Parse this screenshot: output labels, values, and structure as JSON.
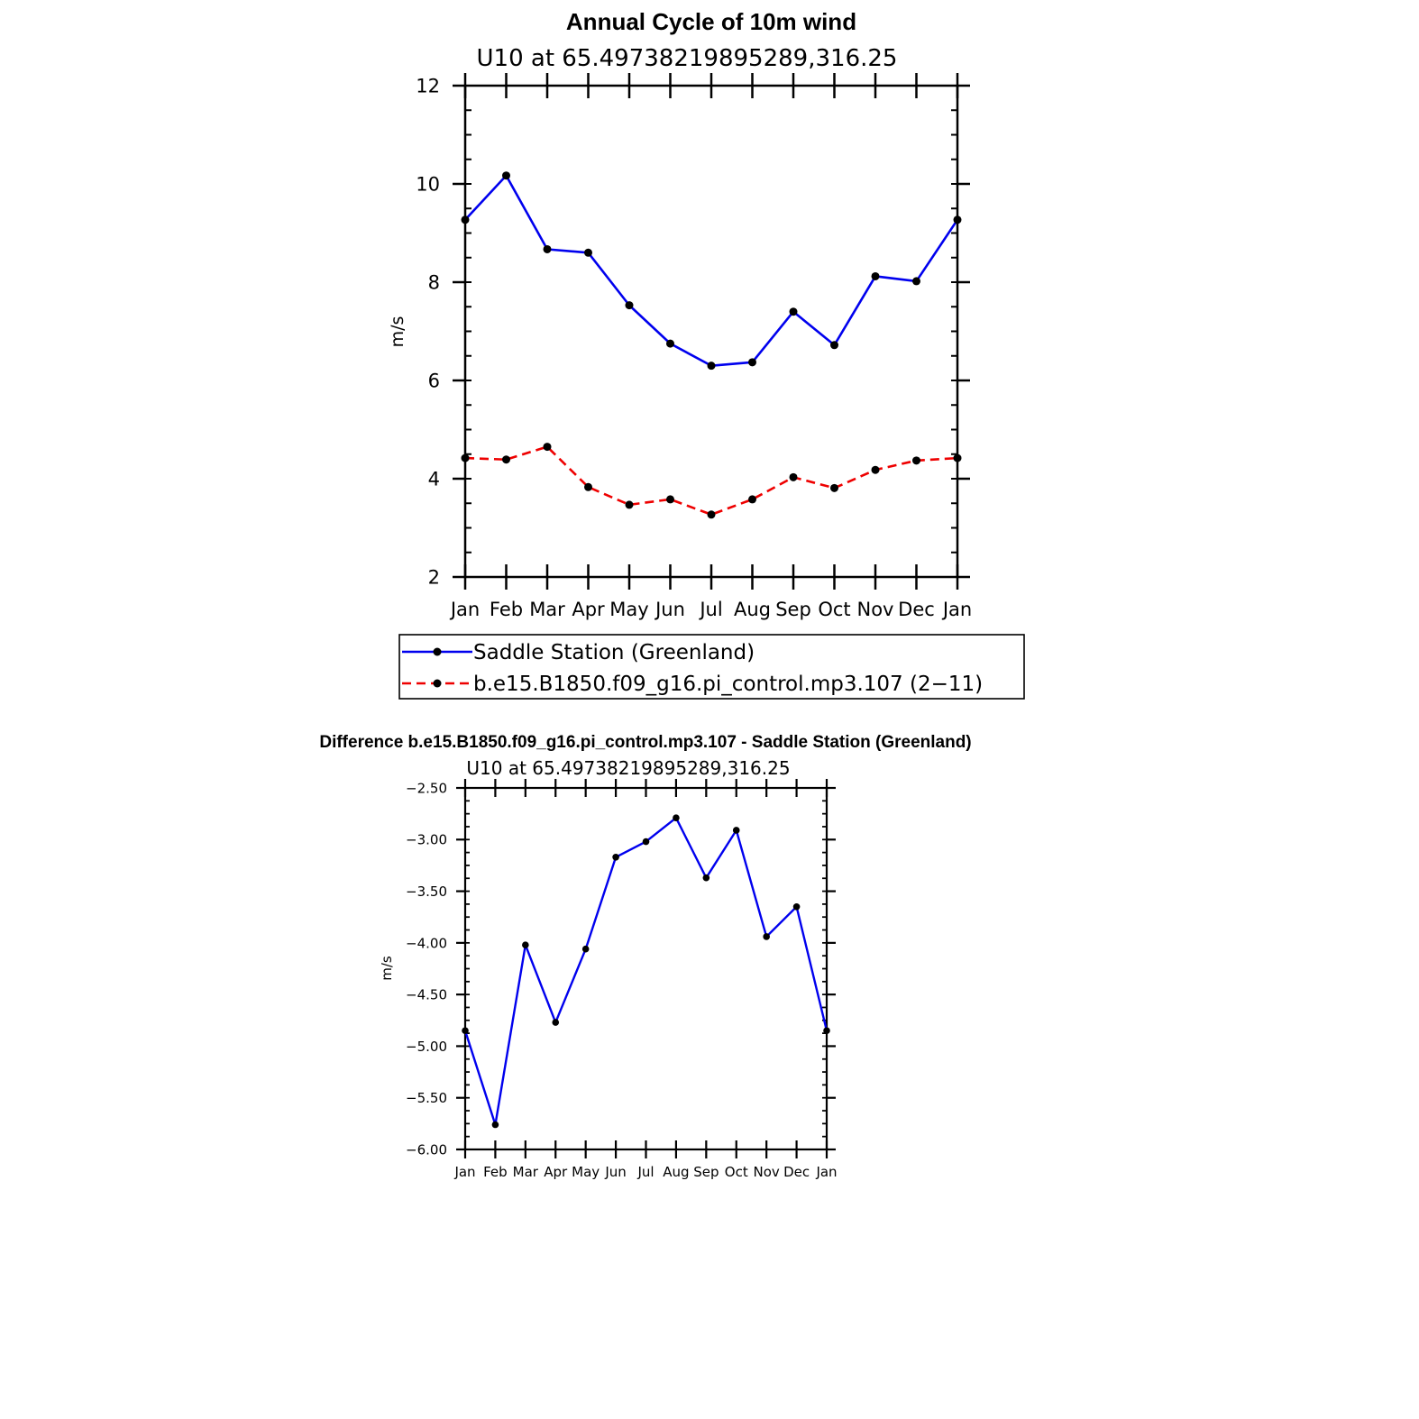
{
  "chart_data": [
    {
      "type": "line",
      "title": "Annual Cycle of 10m wind",
      "subtitle": "U10 at 65.49738219895289,316.25",
      "xlabel": "",
      "ylabel": "m/s",
      "categories": [
        "Jan",
        "Feb",
        "Mar",
        "Apr",
        "May",
        "Jun",
        "Jul",
        "Aug",
        "Sep",
        "Oct",
        "Nov",
        "Dec",
        "Jan"
      ],
      "ylim": [
        2,
        12
      ],
      "yticks": [
        "2",
        "4",
        "6",
        "8",
        "10",
        "12"
      ],
      "grid": false,
      "legend_position": "bottom",
      "series": [
        {
          "name": "Saddle Station (Greenland)",
          "color": "#0000ee",
          "dash": "solid",
          "values": [
            9.27,
            10.17,
            8.67,
            8.6,
            7.53,
            6.75,
            6.3,
            6.37,
            7.4,
            6.72,
            8.12,
            8.02,
            9.27
          ]
        },
        {
          "name": "b.e15.B1850.f09_g16.pi_control.mp3.107 (2−11)",
          "color": "#ee0000",
          "dash": "dashed",
          "values": [
            4.42,
            4.39,
            4.65,
            3.83,
            3.47,
            3.58,
            3.27,
            3.58,
            4.03,
            3.81,
            4.18,
            4.37,
            4.42
          ]
        }
      ]
    },
    {
      "type": "line",
      "title": "Difference b.e15.B1850.f09_g16.pi_control.mp3.107 - Saddle Station (Greenland)",
      "subtitle": "U10 at 65.49738219895289,316.25",
      "xlabel": "",
      "ylabel": "m/s",
      "categories": [
        "Jan",
        "Feb",
        "Mar",
        "Apr",
        "May",
        "Jun",
        "Jul",
        "Aug",
        "Sep",
        "Oct",
        "Nov",
        "Dec",
        "Jan"
      ],
      "ylim": [
        -6.0,
        -2.5
      ],
      "yticks": [
        "−6.00",
        "−5.50",
        "−5.00",
        "−4.50",
        "−4.00",
        "−3.50",
        "−3.00",
        "−2.50"
      ],
      "grid": false,
      "series": [
        {
          "color": "#0000ee",
          "dash": "solid",
          "values": [
            -4.85,
            -5.76,
            -4.02,
            -4.77,
            -4.06,
            -3.17,
            -3.02,
            -2.79,
            -3.37,
            -2.91,
            -3.94,
            -3.65,
            -4.85
          ]
        }
      ]
    }
  ]
}
